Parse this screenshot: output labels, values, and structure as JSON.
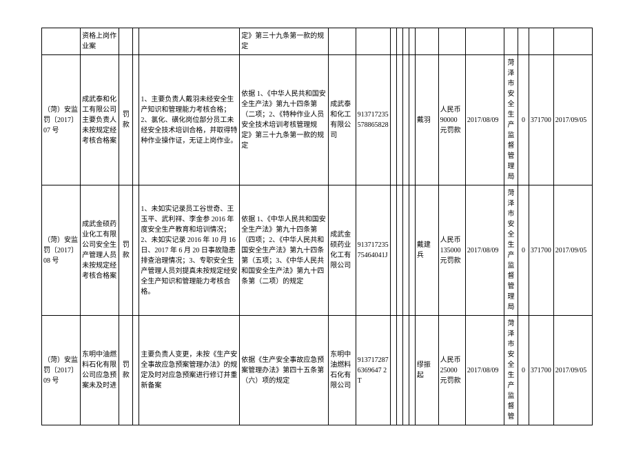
{
  "table": {
    "colors": {
      "border": "#000000",
      "background": "#ffffff",
      "text": "#000000"
    },
    "font_size": 10,
    "rows": [
      {
        "c0": "",
        "c1": "资格上岗作业案",
        "c2": "",
        "c3": "",
        "c4": "",
        "c5": "定》第三十九条第一款的规定",
        "c6": "",
        "c7": "",
        "c8": "",
        "c9": "",
        "c10": "",
        "c11": "",
        "c12": "",
        "c13": "",
        "c14": "",
        "c15": "",
        "c16": "",
        "c17": "",
        "c18": ""
      },
      {
        "c0": "（菏）安监罚〔2017〕07 号",
        "c1": "成武泰和化工有限公司主要负责人未按规定经考核合格案",
        "c2": "罚款",
        "c3": "",
        "c4": "1、主要负责人戴羽未经安全生产知识和管理能力考核合格；2、氯化、磺化岗位部分员工未经安全技术培训合格，并取得特种作业操作证，无证上岗作业。",
        "c5": "依据 1、《中华人民共和国安全生产法》第九十四条第（二项；2、《特种作业人员安全技术培训考核管理规定》第三十九条第一款的规定",
        "c6": "成武泰和化工有限公司",
        "c7": "913717235578865828",
        "c8": "",
        "c9": "",
        "c10": "",
        "c11": "",
        "c12": "戴羽",
        "c13": "人民币90000元罚款",
        "c14": "2017/08/09",
        "c15": "菏泽市安全生产监督管理局",
        "c16": "0",
        "c17": "371700",
        "c18": "2017/09/05"
      },
      {
        "c0": "（菏）安监罚〔2017〕08 号",
        "c1": "成武金硕药业化工有限公司安全生产管理人员未按规定经考核合格案",
        "c2": "罚款",
        "c3": "",
        "c4": "1、未如实记录员工谷世奇、王玉平、武利祥、李金参 2016 年度安全生产教育和培训情况；2、未如实记录 2016 年 10 月 16 日、2017 年 6 月 20 日事故隐患排查治理情况；3、专职安全生产管理人员刘提真未按规定经安全生产知识和管理能力考核合格。",
        "c5": "依据 1、《中华人民共和国安全生产法》第九十四条第（四项；2、《中华人民共和国安全生产法》第九十四条第（五项；3、《中华人民共和国安全生产法》第九十四条第（二项）的规定",
        "c6": "成武金硕药业化工有限公司",
        "c7": "91371723575464041J",
        "c8": "",
        "c9": "",
        "c10": "",
        "c11": "",
        "c12": "戴建兵",
        "c13": "人民币135000元罚款",
        "c14": "2017/08/09",
        "c15": "菏泽市安全生产监督管理局",
        "c16": "0",
        "c17": "371700",
        "c18": "2017/09/05"
      },
      {
        "c0": "（菏）安监罚〔2017〕09 号",
        "c1": "东明中油燃料石化有限公司应急预案未及时进",
        "c2": "罚款",
        "c3": "",
        "c4": "主要负责人变更，未按《生产安全事故应急预案管理办法》的规定及时对应急预案进行修订并重新备案",
        "c5": "依据《生产安全事故应急预案管理办法》第四十五条第（六）项的规定",
        "c6": "东明中油燃料石化有限公司",
        "c7": "9137172876369647 2T",
        "c8": "",
        "c9": "",
        "c10": "",
        "c11": "",
        "c12": "缪振起",
        "c13": "人民币25000元罚款",
        "c14": "2017/08/09",
        "c15": "菏泽市安全生产监督管",
        "c16": "0",
        "c17": "371700",
        "c18": "2017/09/05"
      }
    ]
  }
}
